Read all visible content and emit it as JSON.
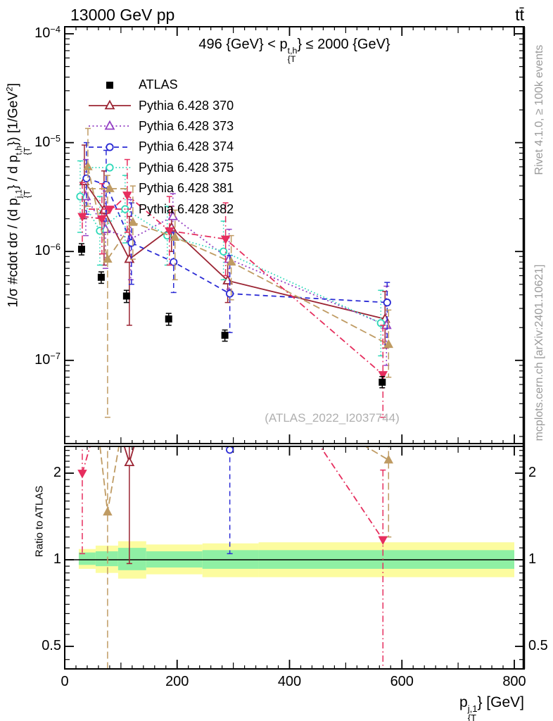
{
  "header": {
    "left": "13000 GeV pp",
    "right": "tt̄"
  },
  "side_notes": {
    "rivet": "Rivet 4.1.0, ≥ 100k events",
    "mcplots": "mcplots.cern.ch [arXiv:2401.10621]"
  },
  "watermark": "(ATLAS_2022_I2037744)",
  "labels": {
    "cut_parts": [
      {
        "t": "496 {GeV} < p"
      },
      {
        "sup": "t,h",
        "sub": "{T"
      },
      {
        "t": "} ≤ 2000 {GeV}"
      }
    ],
    "y_main_parts": [
      {
        "t": "1/σ #cdot dσ / (d p"
      },
      {
        "sup": "j,1",
        "sub": "{T"
      },
      {
        "t": "} / d p"
      },
      {
        "sup": "t,h",
        "sub": "{T"
      },
      {
        "t": "}) [1/GeV"
      },
      {
        "sup": "2"
      },
      {
        "t": "]"
      }
    ],
    "y_ratio": "Ratio to ATLAS",
    "x_parts": [
      {
        "t": "p"
      },
      {
        "sup": "j,1",
        "sub": "{T"
      },
      {
        "t": "} [GeV]"
      }
    ]
  },
  "chart_data": {
    "type": "scatter",
    "title": "496 {GeV} < pT(t,h) <= 2000 {GeV}",
    "xlabel": "pT(j,1) [GeV]",
    "ylabel": "1/sigma dsigma / (d pT(j,1) / d pT(t,h)) [1/GeV^2]",
    "x_gev": [
      40,
      75,
      120,
      195,
      295,
      575
    ],
    "bin_edges_gev": [
      25,
      55,
      95,
      145,
      245,
      345,
      800
    ],
    "x_axis": {
      "min": 0,
      "max": 800,
      "major_ticks": [
        0,
        200,
        400,
        600,
        800
      ]
    },
    "y_axis_main": {
      "scale": "log",
      "min": 1.7e-08,
      "max": 0.000116,
      "tick_exponents": [
        -4,
        -5,
        -6,
        -7
      ]
    },
    "y_axis_ratio": {
      "scale": "log",
      "min": 0.42,
      "max": 2.52,
      "ticks": [
        2,
        1,
        0.5
      ]
    },
    "series": [
      {
        "name": "ATLAS",
        "color": "#000000",
        "marker": "square-filled",
        "line": "none",
        "dx": -8,
        "values": [
          1.05e-06,
          5.8e-07,
          3.9e-07,
          2.4e-07,
          1.7e-07,
          6.3e-08
        ],
        "err_lo": [
          9.3e-07,
          5.1e-07,
          3.4e-07,
          2.1e-07,
          1.5e-07,
          5.6e-08
        ],
        "err_hi": [
          1.18e-06,
          6.5e-07,
          4.4e-07,
          2.7e-07,
          1.9e-07,
          7.1e-08
        ]
      },
      {
        "name": "Pythia 6.428 370",
        "color": "#9b2433",
        "marker": "triangle-up-open",
        "line": "solid",
        "dx": -4,
        "values": [
          4.4e-06,
          2.4e-06,
          8.5e-07,
          1.65e-06,
          5.4e-07,
          2.4e-07
        ],
        "err_lo": [
          2e-06,
          7.5e-07,
          2.1e-07,
          1e-06,
          3.4e-07,
          1.3e-07
        ],
        "err_hi": [
          9.5e-06,
          5.5e-06,
          2.1e-06,
          2.6e-06,
          8.5e-07,
          4.3e-07
        ]
      },
      {
        "name": "Pythia 6.428 373",
        "color": "#9440c4",
        "marker": "triangle-up-open",
        "line": "dotted",
        "dx": -2,
        "values": [
          3.2e-06,
          1.6e-06,
          1.3e-06,
          2.1e-06,
          8.5e-07,
          2.1e-07
        ],
        "err_lo": [
          1.4e-06,
          7e-07,
          5.5e-07,
          1.3e-06,
          4.5e-07,
          9e-08
        ],
        "err_hi": [
          7e-06,
          3.6e-06,
          3e-06,
          3.4e-06,
          1.6e-06,
          4.8e-07
        ]
      },
      {
        "name": "Pythia 6.428 374",
        "color": "#2b2bd5",
        "marker": "circle-open",
        "line": "dashed",
        "dx": -1,
        "values": [
          4.7e-06,
          4.1e-06,
          1.2e-06,
          8e-07,
          4.1e-07,
          3.4e-07
        ],
        "err_lo": [
          2.2e-06,
          1.9e-06,
          5e-07,
          4.2e-07,
          1.8e-07,
          1.4e-07
        ],
        "err_hi": [
          1e-05,
          8.5e-06,
          2.8e-06,
          1.5e-06,
          9.2e-07,
          5.2e-07
        ]
      },
      {
        "name": "Pythia 6.428 375",
        "color": "#2fd9b9",
        "marker": "circle-open",
        "line": "fine-dotted",
        "dx": -10,
        "values": [
          3.2e-06,
          1.55e-06,
          2.45e-06,
          1.4e-06,
          1e-06,
          2.2e-07
        ],
        "err_lo": [
          1.5e-06,
          7.5e-07,
          1.2e-06,
          7.5e-07,
          5.5e-07,
          1.1e-07
        ],
        "err_hi": [
          6.8e-06,
          3.2e-06,
          5e-06,
          2.6e-06,
          1.9e-06,
          4.4e-07
        ]
      },
      {
        "name": "Pythia 6.428 381",
        "color": "#bf9b63",
        "marker": "triangle-up-filled",
        "line": "long-dash",
        "dx": 1,
        "values": [
          6e-06,
          8.5e-07,
          1.85e-06,
          1.35e-06,
          8e-07,
          1.4e-07
        ],
        "err_lo": [
          2.6e-06,
          3e-08,
          8.5e-07,
          5.5e-07,
          3.6e-07,
          7e-08
        ],
        "err_hi": [
          1.35e-05,
          5e-06,
          4e-06,
          2.4e-06,
          1.4e-06,
          2.9e-07
        ]
      },
      {
        "name": "Pythia 6.428 382",
        "color": "#e62e5e",
        "marker": "triangle-down-filled",
        "line": "dash-dot",
        "dx": -7,
        "values": [
          2.1e-06,
          2e-06,
          3.3e-06,
          1.55e-06,
          1.3e-06,
          7.4e-08
        ],
        "err_lo": [
          1.05e-06,
          9.5e-07,
          1.5e-06,
          7.5e-07,
          6e-07,
          3e-08
        ],
        "err_hi": [
          4.3e-06,
          4.2e-06,
          7e-06,
          3.2e-06,
          2.8e-06,
          2.1e-07
        ]
      }
    ],
    "ratio_bands": {
      "yellow_color": "#fcfc9f",
      "green_color": "#8ff0a4",
      "yellow": [
        [
          0.93,
          1.09
        ],
        [
          0.9,
          1.12
        ],
        [
          0.86,
          1.16
        ],
        [
          0.89,
          1.13
        ],
        [
          0.87,
          1.14
        ],
        [
          0.87,
          1.15
        ]
      ],
      "green": [
        [
          0.96,
          1.06
        ],
        [
          0.95,
          1.07
        ],
        [
          0.92,
          1.1
        ],
        [
          0.94,
          1.07
        ],
        [
          0.93,
          1.08
        ],
        [
          0.93,
          1.08
        ]
      ]
    },
    "ratio_err": [
      {
        "series": "Pythia 6.428 382",
        "bin": 0,
        "lo": 1.05,
        "hi": 2.6
      },
      {
        "series": "Pythia 6.428 381",
        "bin": 1,
        "lo": 0.3,
        "hi": 2.6
      },
      {
        "series": "Pythia 6.428 370",
        "bin": 2,
        "lo": 0.97,
        "hi": 2.6
      },
      {
        "series": "Pythia 6.428 374",
        "bin": 4,
        "lo": 1.05,
        "hi": 2.6
      },
      {
        "series": "Pythia 6.428 381",
        "bin": 5,
        "lo": 1.2,
        "hi": 2.6
      },
      {
        "series": "Pythia 6.428 382",
        "bin": 5,
        "lo": 0.3,
        "hi": 2.05
      }
    ]
  }
}
